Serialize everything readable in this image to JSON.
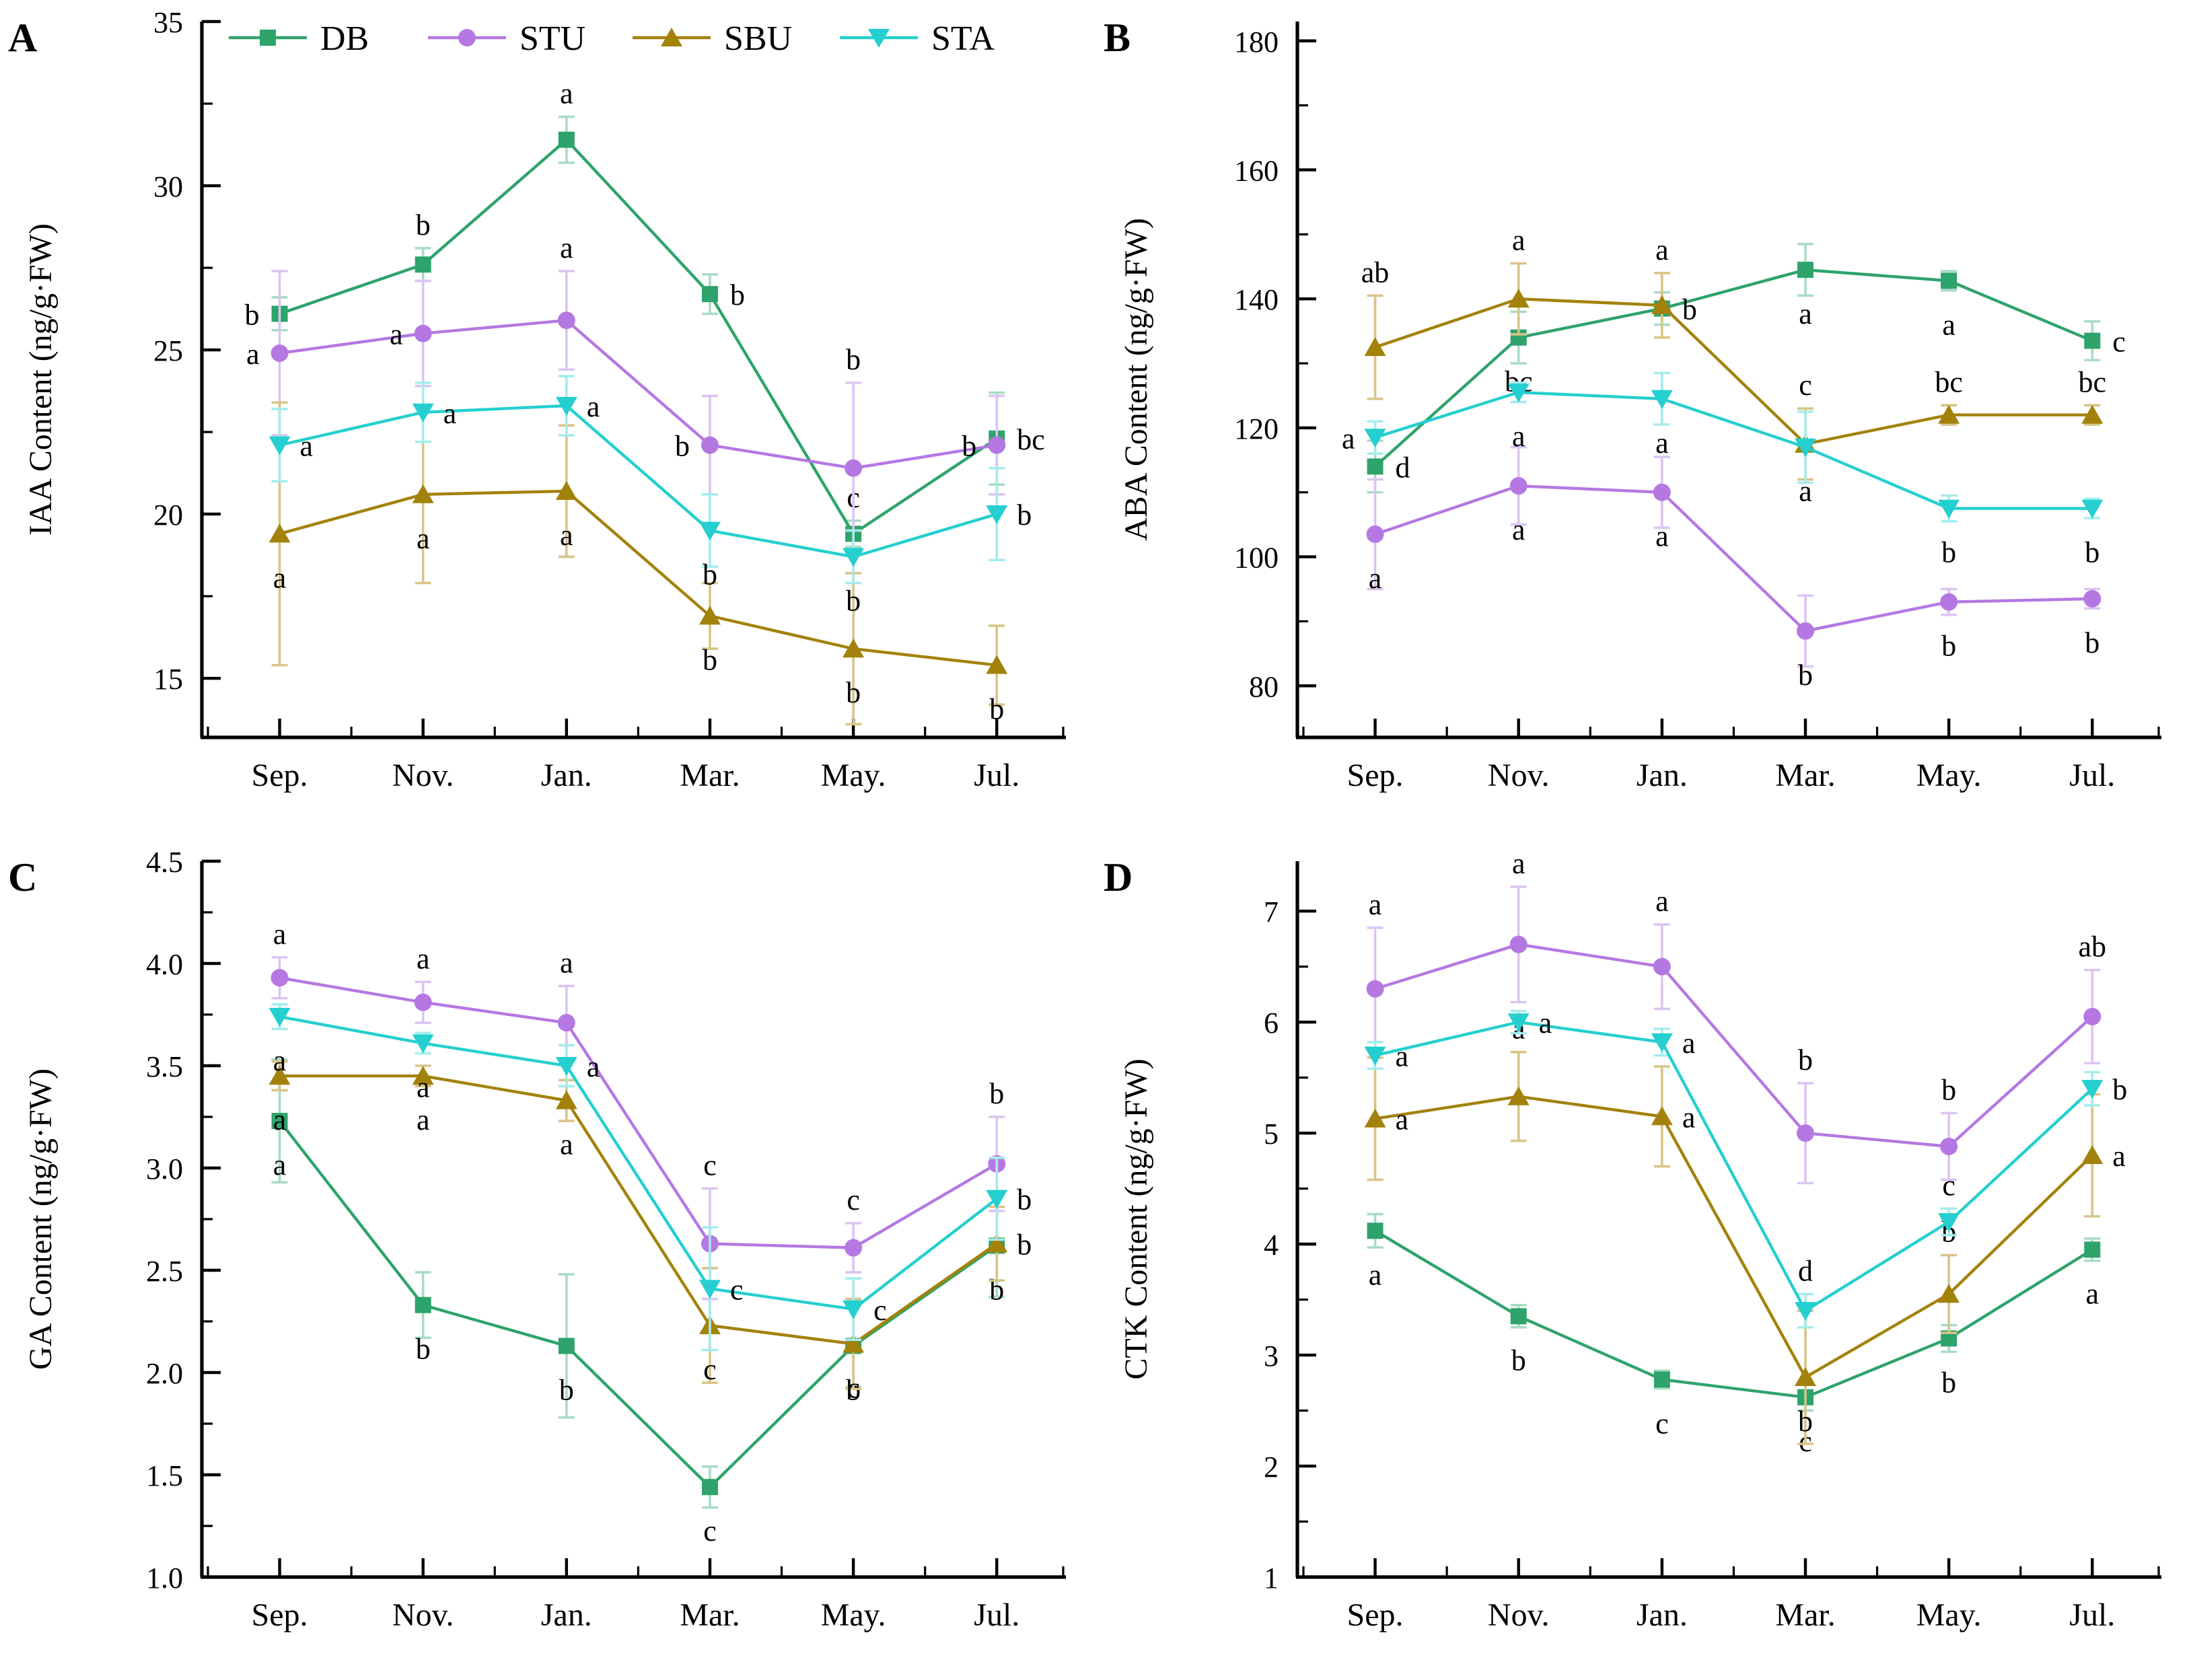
{
  "page": {
    "background": "#ffffff"
  },
  "series_styles": {
    "DB": {
      "color": "#2EA36B",
      "light": "#A8DCC4",
      "marker": "square"
    },
    "STU": {
      "color": "#B578E2",
      "light": "#DCC4F2",
      "marker": "circle"
    },
    "SBU": {
      "color": "#A3820C",
      "light": "#D8C488",
      "marker": "triangle-up"
    },
    "STA": {
      "color": "#25CFCF",
      "light": "#A5ECEC",
      "marker": "triangle-down"
    }
  },
  "legend_labels": [
    "DB",
    "STU",
    "SBU",
    "STA"
  ],
  "chart_data": [
    {
      "id": "A",
      "panel_tag": "A",
      "type": "line",
      "legend": true,
      "ylabel": "IAA Content (ng/g·FW)",
      "categories": [
        "Sep.",
        "Nov.",
        "Jan.",
        "Mar.",
        "May.",
        "Jul."
      ],
      "ylim": [
        13.2,
        35
      ],
      "yticks": [
        15,
        20,
        25,
        30,
        35
      ],
      "ytick_decimals": 0,
      "yminor_step": 2.5,
      "series": [
        {
          "name": "DB",
          "values": [
            26.1,
            27.6,
            31.4,
            26.7,
            19.4,
            22.3
          ],
          "errors": [
            0.5,
            0.5,
            0.7,
            0.6,
            0.4,
            1.4
          ],
          "letters": [
            "b",
            "b",
            "a",
            "b",
            "c",
            "bc"
          ],
          "letter_pos": [
            "left",
            "above",
            "above",
            "right",
            "above",
            "right"
          ]
        },
        {
          "name": "STU",
          "values": [
            24.9,
            25.5,
            25.9,
            22.1,
            21.4,
            22.1
          ],
          "errors": [
            2.5,
            1.6,
            1.5,
            1.5,
            2.6,
            1.5
          ],
          "letters": [
            "a",
            "a",
            "a",
            "b",
            "b",
            "b"
          ],
          "letter_pos": [
            "left",
            "left",
            "above",
            "left",
            "above",
            "left"
          ]
        },
        {
          "name": "SBU",
          "values": [
            19.4,
            20.6,
            20.7,
            16.9,
            15.9,
            15.4
          ],
          "errors": [
            4.0,
            2.7,
            2.0,
            1.0,
            2.3,
            1.2
          ],
          "letters": [
            "a",
            "a",
            "a",
            "b",
            "b",
            "b"
          ],
          "letter_pos": [
            "below",
            "below",
            "below",
            "below",
            "below",
            "below"
          ]
        },
        {
          "name": "STA",
          "values": [
            22.1,
            23.1,
            23.3,
            19.5,
            18.7,
            20.0
          ],
          "errors": [
            1.1,
            0.9,
            0.9,
            1.1,
            0.8,
            1.4
          ],
          "letters": [
            "a",
            "a",
            "a",
            "b",
            "b",
            "b"
          ],
          "letter_pos": [
            "right",
            "right",
            "right",
            "below",
            "below",
            "right"
          ]
        }
      ]
    },
    {
      "id": "B",
      "panel_tag": "B",
      "type": "line",
      "legend": false,
      "ylabel": "ABA Content (ng/g·FW)",
      "categories": [
        "Sep.",
        "Nov.",
        "Jan.",
        "Mar.",
        "May.",
        "Jul."
      ],
      "ylim": [
        72,
        183
      ],
      "yticks": [
        80,
        100,
        120,
        140,
        160,
        180
      ],
      "ytick_decimals": 0,
      "yminor_step": 10,
      "series": [
        {
          "name": "DB",
          "values": [
            114,
            134,
            138.5,
            144.5,
            142.8,
            133.5
          ],
          "errors": [
            4,
            4,
            2.5,
            4,
            1.5,
            3
          ],
          "letters": [
            "d",
            "bc",
            "b",
            "a",
            "a",
            "c"
          ],
          "letter_pos": [
            "right",
            "below",
            "right",
            "below",
            "below",
            "right"
          ]
        },
        {
          "name": "STU",
          "values": [
            103.5,
            111,
            110,
            88.5,
            93,
            93.5
          ],
          "errors": [
            8.5,
            6,
            5.5,
            5.5,
            2,
            1.5
          ],
          "letters": [
            "a",
            "a",
            "a",
            "b",
            "b",
            "b"
          ],
          "letter_pos": [
            "below",
            "below",
            "below",
            "below",
            "below",
            "below"
          ]
        },
        {
          "name": "SBU",
          "values": [
            132.5,
            140,
            139,
            117.5,
            122,
            122
          ],
          "errors": [
            8,
            5.5,
            5,
            5.5,
            1.5,
            1.5
          ],
          "letters": [
            "ab",
            "a",
            "a",
            "c",
            "bc",
            "bc"
          ],
          "letter_pos": [
            "above",
            "above",
            "above",
            "above",
            "above",
            "above"
          ]
        },
        {
          "name": "STA",
          "values": [
            118.5,
            125.5,
            124.5,
            117,
            107.5,
            107.5
          ],
          "errors": [
            2.5,
            1.5,
            4,
            5.5,
            2,
            1.5
          ],
          "letters": [
            "a",
            "a",
            "a",
            "a",
            "b",
            "b"
          ],
          "letter_pos": [
            "left",
            "below",
            "below",
            "below",
            "below",
            "below"
          ]
        }
      ]
    },
    {
      "id": "C",
      "panel_tag": "C",
      "type": "line",
      "legend": false,
      "ylabel": "GA Content (ng/g·FW)",
      "categories": [
        "Sep.",
        "Nov.",
        "Jan.",
        "Mar.",
        "May.",
        "Jul."
      ],
      "ylim": [
        1.0,
        4.5
      ],
      "yticks": [
        1.0,
        1.5,
        2.0,
        2.5,
        3.0,
        3.5,
        4.0,
        4.5
      ],
      "ytick_decimals": 1,
      "yminor_step": 0.25,
      "series": [
        {
          "name": "DB",
          "values": [
            3.23,
            2.33,
            2.13,
            1.44,
            2.13,
            2.62
          ],
          "errors": [
            0.3,
            0.16,
            0.35,
            0.1,
            0.2,
            0.25
          ],
          "letters": [
            "a",
            "b",
            "b",
            "c",
            "b",
            "b"
          ],
          "letter_pos": [
            "below",
            "below",
            "below",
            "below",
            "below",
            "below"
          ]
        },
        {
          "name": "STU",
          "values": [
            3.93,
            3.81,
            3.71,
            2.63,
            2.61,
            3.02
          ],
          "errors": [
            0.1,
            0.1,
            0.18,
            0.27,
            0.12,
            0.23
          ],
          "letters": [
            "a",
            "a",
            "a",
            "c",
            "c",
            "b"
          ],
          "letter_pos": [
            "above",
            "above",
            "above",
            "above",
            "above",
            "above"
          ]
        },
        {
          "name": "SBU",
          "values": [
            3.45,
            3.45,
            3.33,
            2.23,
            2.14,
            2.63
          ],
          "errors": [
            0.07,
            0.05,
            0.1,
            0.28,
            0.22,
            0.18
          ],
          "letters": [
            "a",
            "a",
            "a",
            "c",
            "c",
            "b"
          ],
          "letter_pos": [
            "below",
            "below",
            "below",
            "below",
            "below",
            "right"
          ]
        },
        {
          "name": "STA",
          "values": [
            3.74,
            3.61,
            3.5,
            2.41,
            2.31,
            2.85
          ],
          "errors": [
            0.06,
            0.05,
            0.1,
            0.3,
            0.15,
            0.2
          ],
          "letters": [
            "a",
            "a",
            "a",
            "c",
            "c",
            "b"
          ],
          "letter_pos": [
            "below",
            "below",
            "right",
            "right",
            "right",
            "right"
          ]
        }
      ]
    },
    {
      "id": "D",
      "panel_tag": "D",
      "type": "line",
      "legend": false,
      "ylabel": "CTK Content (ng/g·FW)",
      "categories": [
        "Sep.",
        "Nov.",
        "Jan.",
        "Mar.",
        "May.",
        "Jul."
      ],
      "ylim": [
        1,
        7.45
      ],
      "yticks": [
        1,
        2,
        3,
        4,
        5,
        6,
        7
      ],
      "ytick_decimals": 0,
      "yminor_step": 0.5,
      "series": [
        {
          "name": "DB",
          "values": [
            4.12,
            3.35,
            2.78,
            2.62,
            3.15,
            3.95
          ],
          "errors": [
            0.15,
            0.1,
            0.08,
            0.12,
            0.12,
            0.1
          ],
          "letters": [
            "a",
            "b",
            "c",
            "c",
            "b",
            "a"
          ],
          "letter_pos": [
            "below",
            "below",
            "below",
            "below",
            "below",
            "below"
          ]
        },
        {
          "name": "STU",
          "values": [
            6.3,
            6.7,
            6.5,
            5.0,
            4.88,
            6.05
          ],
          "errors": [
            0.55,
            0.52,
            0.38,
            0.45,
            0.3,
            0.42
          ],
          "letters": [
            "a",
            "a",
            "a",
            "b",
            "b",
            "ab"
          ],
          "letter_pos": [
            "above",
            "above",
            "above",
            "above",
            "above",
            "above"
          ]
        },
        {
          "name": "SBU",
          "values": [
            5.13,
            5.33,
            5.15,
            2.8,
            3.55,
            4.8
          ],
          "errors": [
            0.55,
            0.4,
            0.45,
            0.6,
            0.35,
            0.55
          ],
          "letters": [
            "a",
            "a",
            "a",
            "b",
            "b",
            "a"
          ],
          "letter_pos": [
            "right",
            "above",
            "right",
            "below",
            "above",
            "right"
          ]
        },
        {
          "name": "STA",
          "values": [
            5.7,
            6.0,
            5.82,
            3.4,
            4.2,
            5.4
          ],
          "errors": [
            0.12,
            0.1,
            0.12,
            0.15,
            0.12,
            0.15
          ],
          "letters": [
            "a",
            "a",
            "a",
            "d",
            "c",
            "b"
          ],
          "letter_pos": [
            "right",
            "right",
            "right",
            "above",
            "above",
            "right"
          ]
        }
      ]
    }
  ]
}
